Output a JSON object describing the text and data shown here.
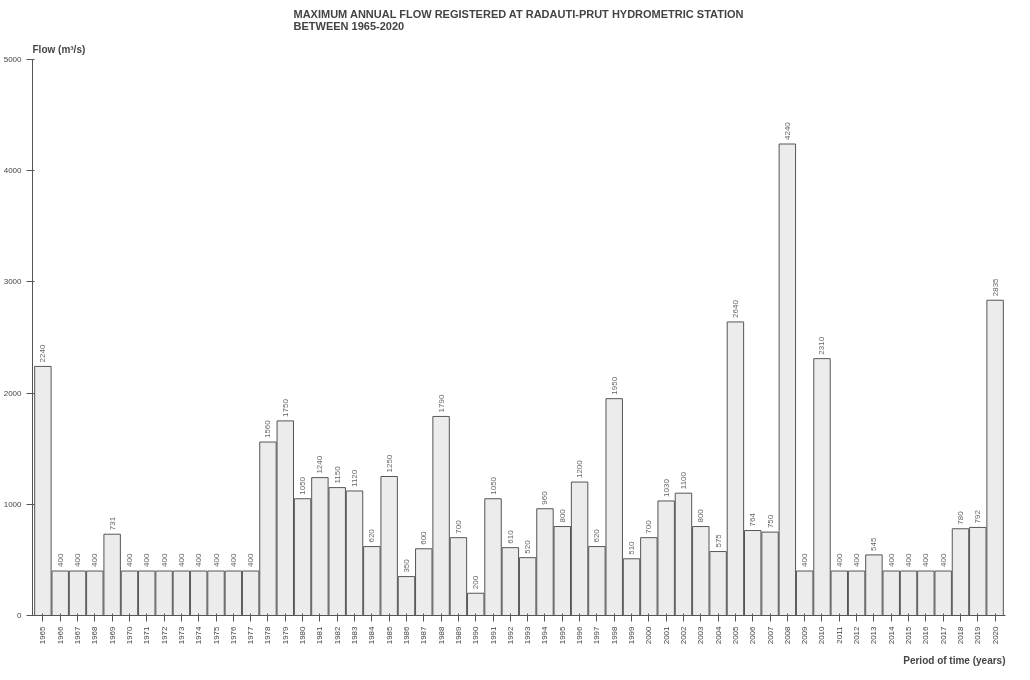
{
  "chart_data": {
    "type": "bar",
    "title": "MAXIMUM ANNUAL FLOW REGISTERED AT RADAUTI-PRUT HYDROMETRIC STATION\nBETWEEN 1965-2020",
    "ylabel": "Flow (m³/s)",
    "xlabel": "Period of time (years)",
    "categories": [
      "1965",
      "1966",
      "1967",
      "1968",
      "1969",
      "1970",
      "1971",
      "1972",
      "1973",
      "1974",
      "1975",
      "1976",
      "1977",
      "1978",
      "1979",
      "1980",
      "1981",
      "1982",
      "1983",
      "1984",
      "1985",
      "1986",
      "1987",
      "1988",
      "1989",
      "1990",
      "1991",
      "1992",
      "1993",
      "1994",
      "1995",
      "1996",
      "1997",
      "1998",
      "1999",
      "2000",
      "2001",
      "2002",
      "2003",
      "2004",
      "2005",
      "2006",
      "2007",
      "2008",
      "2009",
      "2010",
      "2011",
      "2012",
      "2013",
      "2014",
      "2015",
      "2016",
      "2017",
      "2018",
      "2019",
      "2020"
    ],
    "values": [
      2240,
      400,
      400,
      400,
      731,
      400,
      400,
      400,
      400,
      400,
      400,
      400,
      400,
      1560,
      1750,
      1050,
      1240,
      1150,
      1120,
      620,
      1250,
      350,
      600,
      1790,
      700,
      200,
      1050,
      610,
      520,
      960,
      800,
      1200,
      620,
      1950,
      510,
      700,
      1030,
      1100,
      800,
      575,
      2640,
      764,
      750,
      4240,
      400,
      2310,
      400,
      400,
      545,
      400,
      400,
      400,
      400,
      780,
      792,
      2835
    ],
    "color": "#ececec",
    "ylim": [
      0,
      5000
    ],
    "yticks": [
      0,
      1000,
      2000,
      3000,
      4000,
      5000
    ],
    "grid": false,
    "data_labels": true
  }
}
